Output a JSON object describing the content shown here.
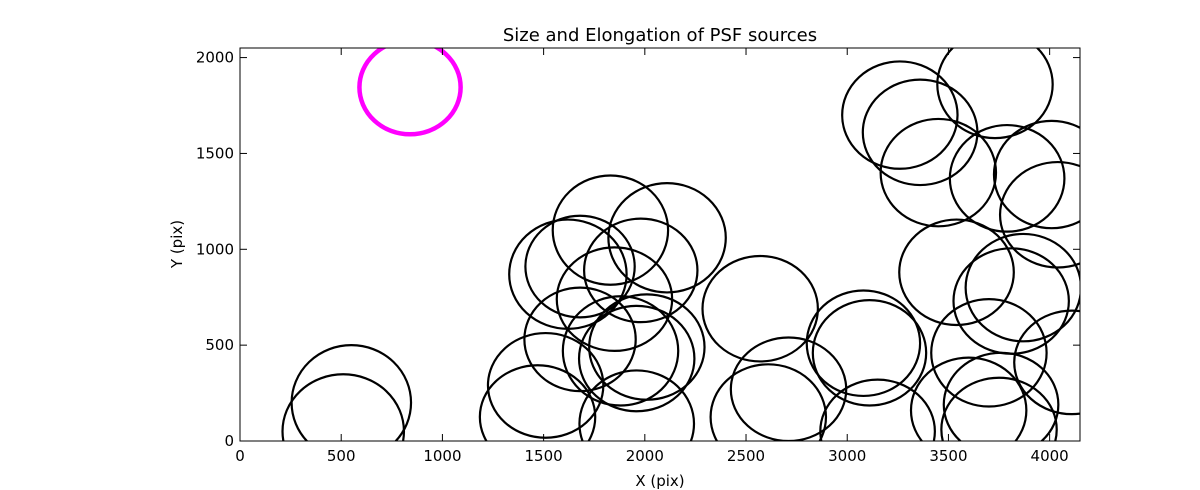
{
  "chart_data": {
    "type": "scatter",
    "title": "Size and Elongation of PSF sources",
    "xlabel": "X (pix)",
    "ylabel": "Y (pix)",
    "xlim": [
      0,
      4150
    ],
    "ylim": [
      0,
      2050
    ],
    "xticks": [
      0,
      500,
      1000,
      1500,
      2000,
      2500,
      3000,
      3500,
      4000
    ],
    "yticks": [
      0,
      500,
      1000,
      1500,
      2000
    ],
    "grid": false,
    "reference_source": {
      "x": 840,
      "y": 1845,
      "rx": 250,
      "ry": 245,
      "angle": 0,
      "color": "#ff00ff"
    },
    "source_color": "#000000",
    "sources": [
      {
        "x": 550,
        "y": 200,
        "rx": 295,
        "ry": 300,
        "angle": 0
      },
      {
        "x": 510,
        "y": 50,
        "rx": 300,
        "ry": 298,
        "angle": 0
      },
      {
        "x": 1510,
        "y": 290,
        "rx": 285,
        "ry": 273,
        "angle": 0
      },
      {
        "x": 1470,
        "y": 125,
        "rx": 285,
        "ry": 270,
        "angle": 0
      },
      {
        "x": 1680,
        "y": 530,
        "rx": 275,
        "ry": 270,
        "angle": 0
      },
      {
        "x": 1620,
        "y": 870,
        "rx": 290,
        "ry": 285,
        "angle": 0
      },
      {
        "x": 1680,
        "y": 910,
        "rx": 270,
        "ry": 265,
        "angle": 0
      },
      {
        "x": 1830,
        "y": 1100,
        "rx": 285,
        "ry": 285,
        "angle": 0
      },
      {
        "x": 1980,
        "y": 890,
        "rx": 280,
        "ry": 270,
        "angle": 0
      },
      {
        "x": 2110,
        "y": 1060,
        "rx": 290,
        "ry": 285,
        "angle": 0
      },
      {
        "x": 1850,
        "y": 740,
        "rx": 285,
        "ry": 270,
        "angle": 0
      },
      {
        "x": 1880,
        "y": 470,
        "rx": 285,
        "ry": 285,
        "angle": 0
      },
      {
        "x": 2010,
        "y": 490,
        "rx": 285,
        "ry": 275,
        "angle": 0
      },
      {
        "x": 1960,
        "y": 430,
        "rx": 285,
        "ry": 275,
        "angle": 0
      },
      {
        "x": 1960,
        "y": 90,
        "rx": 283,
        "ry": 278,
        "angle": 0
      },
      {
        "x": 2570,
        "y": 690,
        "rx": 285,
        "ry": 275,
        "angle": 0
      },
      {
        "x": 2710,
        "y": 270,
        "rx": 285,
        "ry": 270,
        "angle": 0
      },
      {
        "x": 2610,
        "y": 125,
        "rx": 285,
        "ry": 275,
        "angle": 0
      },
      {
        "x": 3080,
        "y": 510,
        "rx": 280,
        "ry": 275,
        "angle": 0
      },
      {
        "x": 3110,
        "y": 460,
        "rx": 280,
        "ry": 275,
        "angle": 0
      },
      {
        "x": 3150,
        "y": 50,
        "rx": 283,
        "ry": 270,
        "angle": 0
      },
      {
        "x": 3260,
        "y": 1700,
        "rx": 285,
        "ry": 280,
        "angle": 0
      },
      {
        "x": 3360,
        "y": 1610,
        "rx": 283,
        "ry": 275,
        "angle": 0
      },
      {
        "x": 3450,
        "y": 1400,
        "rx": 285,
        "ry": 280,
        "angle": 0
      },
      {
        "x": 3730,
        "y": 1860,
        "rx": 285,
        "ry": 280,
        "angle": 0
      },
      {
        "x": 3790,
        "y": 1370,
        "rx": 283,
        "ry": 278,
        "angle": 0
      },
      {
        "x": 4010,
        "y": 1390,
        "rx": 285,
        "ry": 280,
        "angle": 0
      },
      {
        "x": 4040,
        "y": 1180,
        "rx": 285,
        "ry": 275,
        "angle": 0
      },
      {
        "x": 3540,
        "y": 880,
        "rx": 283,
        "ry": 275,
        "angle": 0
      },
      {
        "x": 3870,
        "y": 800,
        "rx": 285,
        "ry": 280,
        "angle": 0
      },
      {
        "x": 3810,
        "y": 730,
        "rx": 285,
        "ry": 275,
        "angle": 0
      },
      {
        "x": 3700,
        "y": 460,
        "rx": 285,
        "ry": 280,
        "angle": 0
      },
      {
        "x": 4110,
        "y": 410,
        "rx": 285,
        "ry": 270,
        "angle": 0
      },
      {
        "x": 3600,
        "y": 160,
        "rx": 285,
        "ry": 275,
        "angle": 0
      },
      {
        "x": 3760,
        "y": 190,
        "rx": 283,
        "ry": 270,
        "angle": 0
      },
      {
        "x": 3750,
        "y": 60,
        "rx": 285,
        "ry": 270,
        "angle": 0
      }
    ]
  }
}
